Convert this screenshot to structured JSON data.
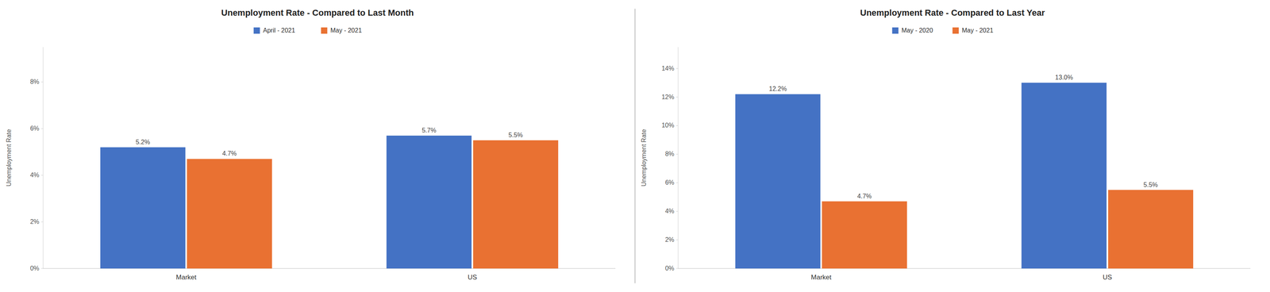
{
  "chart_data": [
    {
      "type": "bar",
      "title": "Unemployment Rate - Compared to Last Month",
      "categories": [
        "Market",
        "US"
      ],
      "series": [
        {
          "name": "April - 2021",
          "color": "#4472C4",
          "values": [
            5.2,
            5.7
          ],
          "value_labels": [
            "5.2%",
            "5.7%"
          ]
        },
        {
          "name": "May - 2021",
          "color": "#E97132",
          "values": [
            4.7,
            5.5
          ],
          "value_labels": [
            "4.7%",
            "5.5%"
          ]
        }
      ],
      "ylim": [
        0,
        9.5
      ],
      "yticks": [
        {
          "value": 0,
          "label": "0%"
        },
        {
          "value": 2,
          "label": "2%"
        },
        {
          "value": 4,
          "label": "4%"
        },
        {
          "value": 6,
          "label": "6%"
        },
        {
          "value": 8,
          "label": "8%"
        }
      ],
      "ylabel": "Unemployment Rate",
      "data_labels": true,
      "legend": "top",
      "grid": false
    },
    {
      "type": "bar",
      "title": "Unemployment Rate - Compared to Last Year",
      "categories": [
        "Market",
        "US"
      ],
      "series": [
        {
          "name": "May - 2020",
          "color": "#4472C4",
          "values": [
            12.2,
            13.0
          ],
          "value_labels": [
            "12.2%",
            "13.0%"
          ]
        },
        {
          "name": "May - 2021",
          "color": "#E97132",
          "values": [
            4.7,
            5.5
          ],
          "value_labels": [
            "4.7%",
            "5.5%"
          ]
        }
      ],
      "ylim": [
        0,
        15.5
      ],
      "yticks": [
        {
          "value": 0,
          "label": "0%"
        },
        {
          "value": 2,
          "label": "2%"
        },
        {
          "value": 4,
          "label": "4%"
        },
        {
          "value": 6,
          "label": "6%"
        },
        {
          "value": 8,
          "label": "8%"
        },
        {
          "value": 10,
          "label": "10%"
        },
        {
          "value": 12,
          "label": "12%"
        },
        {
          "value": 14,
          "label": "14%"
        }
      ],
      "ylabel": "Unemployment Rate",
      "data_labels": true,
      "legend": "top",
      "grid": false
    }
  ]
}
